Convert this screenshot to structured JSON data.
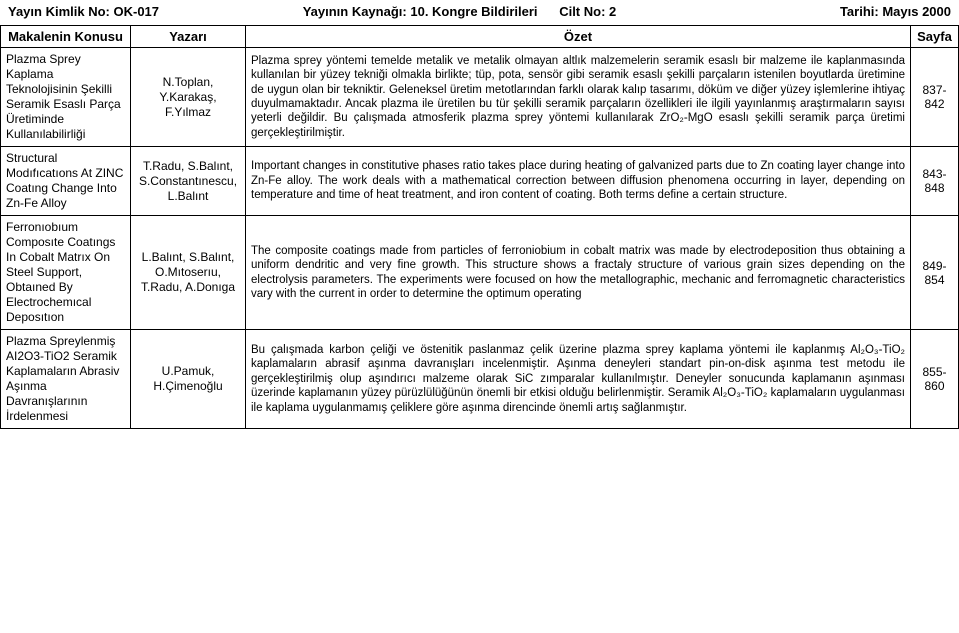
{
  "header": {
    "pub_id_label": "Yayın Kimlik No:",
    "pub_id_value": "OK-017",
    "source_label": "Yayının Kaynağı:",
    "source_value": "10. Kongre Bildirileri",
    "volume_label": "Cilt No:",
    "volume_value": "2",
    "date_label": "Tarihi:",
    "date_value": "Mayıs 2000"
  },
  "table": {
    "columns": {
      "topic": "Makalenin Konusu",
      "author": "Yazarı",
      "abstract": "Özet",
      "page": "Sayfa"
    },
    "rows": [
      {
        "topic": "Plazma Sprey Kaplama Teknolojisinin Şekilli Seramik Esaslı Parça Üretiminde Kullanılabilirliği",
        "authors": "N.Toplan, Y.Karakaş, F.Yılmaz",
        "abstract": "Plazma sprey yöntemi temelde metalik ve metalik olmayan altlık malzemelerin seramik esaslı bir malzeme ile kaplanmasında kullanılan bir yüzey tekniği olmakla birlikte; tüp, pota, sensör gibi seramik esaslı şekilli parçaların istenilen boyutlarda üretimine de uygun olan bir tekniktir. Geleneksel üretim metotlarından farklı olarak kalıp tasarımı, döküm ve diğer yüzey işlemlerine ihtiyaç duyulmamaktadır. Ancak plazma ile üretilen bu tür şekilli seramik parçaların özellikleri ile ilgili yayınlanmış araştırmaların sayısı yeterli değildir. Bu çalışmada atmosferik plazma sprey yöntemi kullanılarak ZrO₂-MgO esaslı şekilli seramik parça üretimi gerçekleştirilmiştir.",
        "pages": "837-842"
      },
      {
        "topic": "Structural Modıfıcatıons At ZINC Coatıng Change Into Zn-Fe Alloy",
        "authors": "T.Radu, S.Balınt, S.Constantınescu, L.Balınt",
        "abstract": "Important changes in constitutive phases ratio takes place during heating of galvanized parts due to Zn coating layer change into Zn-Fe alloy. The work deals with a mathematical correction between diffusion phenomena occurring in layer, depending on temperature and time of heat treatment, and iron content of coating. Both terms define a certain structure.",
        "pages": "843-848"
      },
      {
        "topic": "Ferronıobıum Composıte Coatıngs In Cobalt Matrıx On Steel Support, Obtaıned By Electrochemıcal Deposıtıon",
        "authors": "L.Balınt, S.Balınt, O.Mıtoserıu, T.Radu, A.Donıga",
        "abstract": "The composite coatings made from particles of ferroniobium in cobalt matrix was made by electrodeposition thus obtaining a uniform dendritic and very fine growth. This structure shows a fractaly structure of various grain sizes depending on the electrolysis parameters. The experiments were focused on how the metallographic, mechanic and ferromagnetic characteristics vary with the current in order to determine the optimum operating",
        "pages": "849-854"
      },
      {
        "topic": "Plazma Spreylenmiş AI2O3-TiO2 Seramik Kaplamaların Abrasiv Aşınma Davranışlarının İrdelenmesi",
        "authors": "U.Pamuk, H.Çimenoğlu",
        "abstract": "Bu çalışmada karbon çeliği ve östenitik paslanmaz çelik üzerine plazma sprey kaplama yöntemi ile kaplanmış Al₂O₃-TiO₂ kaplamaların abrasif aşınma davranışları incelenmiştir. Aşınma deneyleri standart pin-on-disk aşınma test metodu ile gerçekleştirilmiş olup aşındırıcı malzeme olarak SiC zımparalar kullanılmıştır. Deneyler sonucunda kaplamanın aşınması üzerinde kaplamanın yüzey pürüzlülüğünün önemli bir etkisi olduğu belirlenmiştir. Seramik Al₂O₃-TiO₂ kaplamaların uygulanması ile kaplama uygulanmamış çeliklere göre aşınma direncinde önemli artış sağlanmıştır.",
        "pages": "855-860"
      }
    ]
  }
}
